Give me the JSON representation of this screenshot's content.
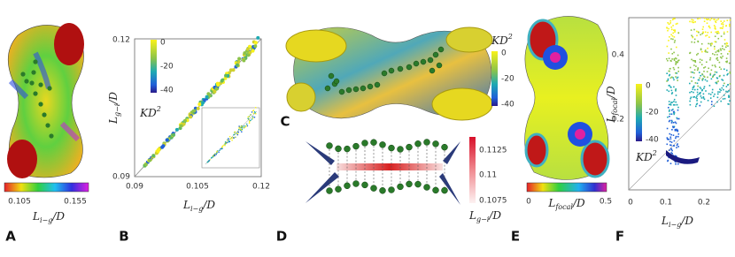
{
  "panels": [
    {
      "letter": "A",
      "colorbar": {
        "ticks": [
          "0.105",
          "0.155"
        ],
        "label": {
          "main": "L",
          "sub": "i−g",
          "tail": "/D"
        }
      }
    },
    {
      "letter": "B",
      "x_label": {
        "main": "L",
        "sub": "i−g",
        "tail": "/D"
      },
      "y_label": {
        "main": "L",
        "sub": "g−i",
        "tail": "/D"
      },
      "x_ticks": [
        "0.09",
        "0.105",
        "0.12"
      ],
      "y_ticks": [
        "0.09",
        "0.12"
      ],
      "colorbar": {
        "ticks": [
          "0",
          "-20",
          "-40"
        ],
        "label": {
          "main": "KD",
          "sup": "2"
        }
      }
    },
    {
      "letter": "C",
      "colorbar": {
        "ticks": [
          "0",
          "-20",
          "-40"
        ],
        "label": {
          "main": "KD",
          "sup": "2"
        }
      }
    },
    {
      "letter": "D",
      "colorbar": {
        "ticks": [
          "0.1125",
          "0.11",
          "0.1075"
        ],
        "label": {
          "main": "L",
          "sub": "g−i",
          "tail": "/D"
        }
      }
    },
    {
      "letter": "E",
      "colorbar": {
        "ticks": [
          "0",
          "0.5"
        ],
        "label": {
          "main": "L",
          "sub": "focal",
          "tail": "/D"
        }
      }
    },
    {
      "letter": "F",
      "x_label": {
        "main": "L",
        "sub": "i−g",
        "tail": "/D"
      },
      "y_label": {
        "main": "L",
        "sub": "focal",
        "tail": "/D"
      },
      "x_ticks": [
        "0",
        "0.1",
        "0.2"
      ],
      "y_ticks": [
        "0.2",
        "0.4"
      ],
      "colorbar": {
        "ticks": [
          "0",
          "-20",
          "-40"
        ],
        "label": {
          "main": "KD",
          "sup": "2"
        }
      }
    }
  ]
}
